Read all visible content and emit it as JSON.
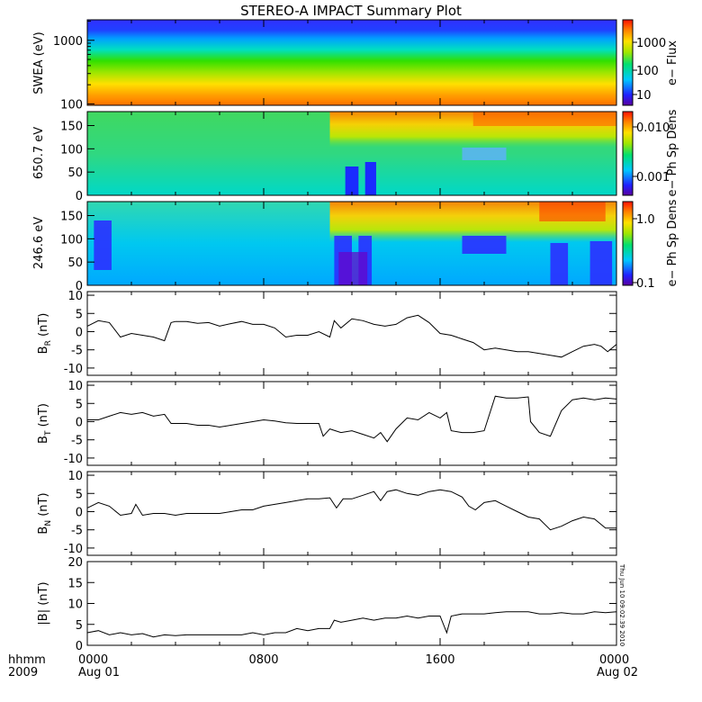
{
  "title": "STEREO-A IMPACT Summary Plot",
  "footer": {
    "time_label": "hhmm",
    "year_label": "2009",
    "xticks": [
      "0000",
      "0800",
      "1600",
      "0000"
    ],
    "date_labels": [
      "Aug 01",
      "Aug 02"
    ]
  },
  "timestamp": "Thu Jun 10 09:02:39 2010",
  "colorbars": [
    {
      "label": "e− Flux",
      "ticks": [
        "1000",
        "100",
        "10"
      ]
    },
    {
      "label": "e− Ph Sp Dens",
      "ticks": [
        "0.010",
        "0.001"
      ]
    },
    {
      "label": "e− Ph Sp Dens",
      "ticks": [
        "1.0",
        "0.1"
      ]
    }
  ],
  "chart_data": [
    {
      "type": "heatmap",
      "ylabel": "SWEA (eV)",
      "yscale": "log",
      "ylim": [
        95,
        2100
      ],
      "yticks": [
        "1000",
        "100"
      ],
      "colorbar_label": "e− Flux",
      "colorbar_scale": "log",
      "colorbar_range": [
        5,
        6000
      ],
      "description_bands": [
        {
          "y": 1800,
          "color_value": 5
        },
        {
          "y": 1000,
          "color_value": 20
        },
        {
          "y": 600,
          "color_value": 100
        },
        {
          "y": 300,
          "color_value": 400
        },
        {
          "y": 150,
          "color_value": 1500
        },
        {
          "y": 100,
          "color_value": 4000
        }
      ]
    },
    {
      "type": "heatmap",
      "ylabel": "650.7 eV",
      "ylim": [
        0,
        180
      ],
      "yticks": [
        "150",
        "100",
        "50",
        "0"
      ],
      "colorbar_label": "e− Ph Sp Dens",
      "colorbar_scale": "log",
      "colorbar_range": [
        0.0002,
        0.02
      ]
    },
    {
      "type": "heatmap",
      "ylabel": "246.6 eV",
      "ylim": [
        0,
        180
      ],
      "yticks": [
        "150",
        "100",
        "50",
        "0"
      ],
      "colorbar_label": "e− Ph Sp Dens",
      "colorbar_scale": "log",
      "colorbar_range": [
        0.08,
        2.0
      ]
    },
    {
      "type": "line",
      "ylabel": "B_R (nT)",
      "ylim": [
        -12,
        11
      ],
      "yticks": [
        -10,
        -5,
        0,
        5,
        10
      ],
      "x_hours": [
        0,
        0.5,
        1,
        1.5,
        2,
        2.5,
        3,
        3.5,
        3.8,
        4,
        4.5,
        5,
        5.5,
        6,
        6.5,
        7,
        7.5,
        8,
        8.5,
        9,
        9.5,
        10,
        10.5,
        11,
        11.2,
        11.5,
        12,
        12.5,
        13,
        13.5,
        14,
        14.5,
        15,
        15.5,
        16,
        16.5,
        17,
        17.5,
        18,
        18.5,
        19,
        19.5,
        20,
        20.5,
        21,
        21.5,
        22,
        22.5,
        23,
        23.3,
        23.6,
        24
      ],
      "values": [
        1.5,
        3,
        2.5,
        -1.5,
        -0.5,
        -1,
        -1.5,
        -2.5,
        2.5,
        2.8,
        2.8,
        2.3,
        2.5,
        1.5,
        2.2,
        2.8,
        2,
        2,
        1,
        -1.5,
        -1,
        -1,
        0,
        -1.5,
        3,
        1,
        3.5,
        3,
        2,
        1.5,
        2,
        3.8,
        4.5,
        2.5,
        -0.5,
        -1,
        -2,
        -3,
        -5,
        -4.5,
        -5,
        -5.5,
        -5.5,
        -6,
        -6.5,
        -7,
        -5.5,
        -4,
        -3.5,
        -4,
        -5.5,
        -3.5
      ]
    },
    {
      "type": "line",
      "ylabel": "B_T (nT)",
      "ylim": [
        -12,
        11
      ],
      "yticks": [
        -10,
        -5,
        0,
        5,
        10
      ],
      "x_hours": [
        0,
        0.5,
        1,
        1.5,
        2,
        2.5,
        3,
        3.5,
        3.8,
        4,
        4.5,
        5,
        5.5,
        6,
        6.5,
        7,
        7.5,
        8,
        8.5,
        9,
        9.5,
        10,
        10.5,
        10.7,
        11,
        11.5,
        12,
        12.5,
        13,
        13.3,
        13.6,
        14,
        14.5,
        15,
        15.5,
        16,
        16.3,
        16.5,
        17,
        17.5,
        18,
        18.5,
        19,
        19.5,
        20,
        20.1,
        20.5,
        21,
        21.5,
        22,
        22.5,
        23,
        23.5,
        24
      ],
      "values": [
        0.5,
        0.5,
        1.5,
        2.5,
        2,
        2.5,
        1.5,
        2,
        -0.5,
        -0.5,
        -0.5,
        -1,
        -1,
        -1.5,
        -1,
        -0.5,
        0,
        0.5,
        0.2,
        -0.3,
        -0.5,
        -0.5,
        -0.5,
        -4,
        -2,
        -3,
        -2.5,
        -3.5,
        -4.5,
        -3,
        -5.5,
        -2,
        1,
        0.5,
        2.5,
        1,
        2.5,
        -2.5,
        -3,
        -3,
        -2.5,
        7,
        6.5,
        6.5,
        6.8,
        0,
        -3,
        -4,
        3,
        6,
        6.5,
        6,
        6.5,
        6.2
      ]
    },
    {
      "type": "line",
      "ylabel": "B_N (nT)",
      "ylim": [
        -12,
        11
      ],
      "yticks": [
        -10,
        -5,
        0,
        5,
        10
      ],
      "x_hours": [
        0,
        0.5,
        1,
        1.5,
        2,
        2.2,
        2.5,
        3,
        3.5,
        4,
        4.5,
        5,
        5.5,
        6,
        6.5,
        7,
        7.5,
        8,
        8.5,
        9,
        9.5,
        10,
        10.5,
        11,
        11.3,
        11.6,
        12,
        12.5,
        13,
        13.3,
        13.6,
        14,
        14.5,
        15,
        15.5,
        16,
        16.5,
        17,
        17.3,
        17.6,
        18,
        18.5,
        19,
        19.5,
        20,
        20.5,
        21,
        21.5,
        22,
        22.5,
        23,
        23.5,
        24
      ],
      "values": [
        1,
        2.5,
        1.5,
        -1,
        -0.5,
        2,
        -1,
        -0.5,
        -0.5,
        -1,
        -0.5,
        -0.5,
        -0.5,
        -0.5,
        0,
        0.5,
        0.5,
        1.5,
        2,
        2.5,
        3,
        3.5,
        3.5,
        3.8,
        1,
        3.5,
        3.5,
        4.5,
        5.5,
        3,
        5.5,
        6,
        5,
        4.5,
        5.5,
        6,
        5.5,
        4,
        1.5,
        0.5,
        2.5,
        3,
        1.5,
        0,
        -1.5,
        -2,
        -5,
        -4,
        -2.5,
        -1.5,
        -2,
        -4.5,
        -4.5
      ]
    },
    {
      "type": "line",
      "ylabel": "|B| (nT)",
      "ylim": [
        0,
        20
      ],
      "yticks": [
        0,
        5,
        10,
        15,
        20
      ],
      "x_hours": [
        0,
        0.5,
        1,
        1.5,
        2,
        2.5,
        3,
        3.5,
        4,
        4.5,
        5,
        5.5,
        6,
        6.5,
        7,
        7.5,
        8,
        8.5,
        9,
        9.5,
        10,
        10.5,
        11,
        11.2,
        11.5,
        12,
        12.5,
        13,
        13.5,
        14,
        14.5,
        15,
        15.5,
        16,
        16.3,
        16.5,
        17,
        17.5,
        18,
        18.5,
        19,
        19.5,
        20,
        20.5,
        21,
        21.5,
        22,
        22.5,
        23,
        23.5,
        24
      ],
      "values": [
        3,
        3.5,
        2.5,
        3,
        2.5,
        2.8,
        2,
        2.5,
        2.3,
        2.5,
        2.5,
        2.5,
        2.5,
        2.5,
        2.5,
        3,
        2.5,
        3,
        3,
        4,
        3.5,
        4,
        4,
        6,
        5.5,
        6,
        6.5,
        6,
        6.5,
        6.5,
        7,
        6.5,
        7,
        7,
        3,
        7,
        7.5,
        7.5,
        7.5,
        7.8,
        8,
        8,
        8,
        7.5,
        7.5,
        7.8,
        7.5,
        7.5,
        8,
        7.8,
        8
      ]
    }
  ]
}
